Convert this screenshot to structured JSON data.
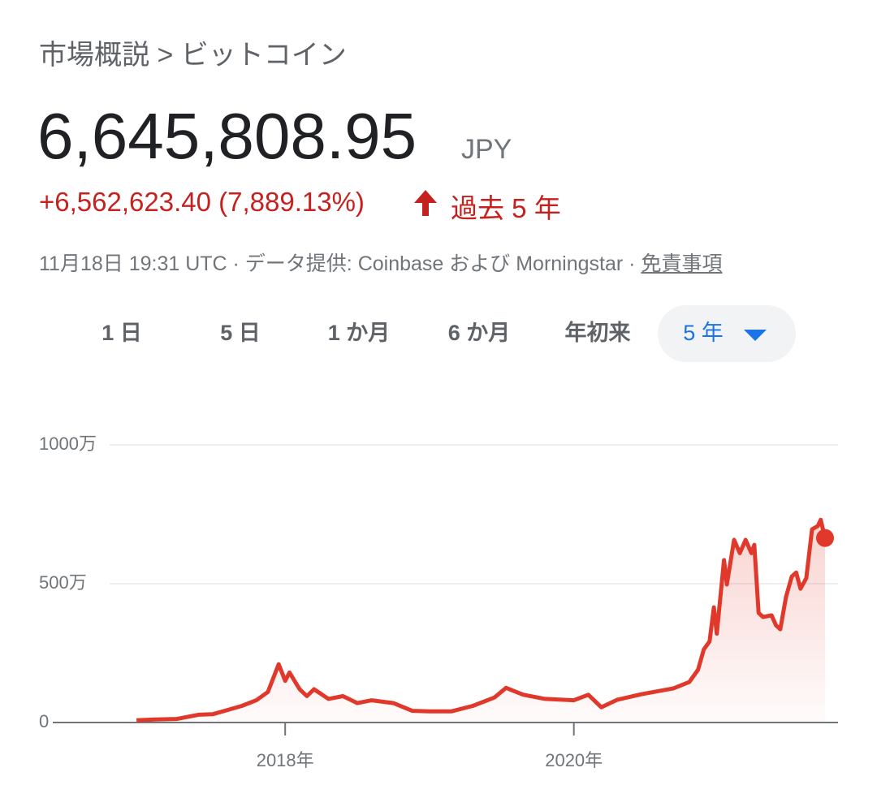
{
  "header": {
    "breadcrumb": "市場概説 > ビットコイン",
    "price": "6,645,808.95",
    "currency": "JPY",
    "change": "+6,562,623.40 (7,889.13%)",
    "period": "過去 5 年",
    "info": "11月18日 19:31 UTC · データ提供: Coinbase および Morningstar · ",
    "disclaimer": "免責事項"
  },
  "tabs": [
    "1 日",
    "5 日",
    "1 か月",
    "6 か月",
    "年初来",
    "5 年"
  ],
  "selected_tab": 5,
  "chart_data": {
    "type": "line",
    "color": "#e0392b",
    "x": [
      2016.97,
      2017.1,
      2017.25,
      2017.4,
      2017.5,
      2017.6,
      2017.7,
      2017.8,
      2017.88,
      2017.955,
      2018.0,
      2018.03,
      2018.1,
      2018.15,
      2018.2,
      2018.3,
      2018.4,
      2018.5,
      2018.6,
      2018.75,
      2018.88,
      2019.0,
      2019.15,
      2019.3,
      2019.45,
      2019.53,
      2019.65,
      2019.8,
      2020.0,
      2020.1,
      2020.19,
      2020.3,
      2020.47,
      2020.69,
      2020.8,
      2020.86,
      2020.9,
      2020.94,
      2020.97,
      2020.99,
      2021.04,
      2021.06,
      2021.11,
      2021.15,
      2021.19,
      2021.23,
      2021.25,
      2021.28,
      2021.31,
      2021.37,
      2021.4,
      2021.43,
      2021.47,
      2021.51,
      2021.54,
      2021.57,
      2021.61,
      2021.65,
      2021.69,
      2021.71,
      2021.74
    ],
    "values": [
      83185,
      110000,
      130000,
      280000,
      300000,
      450000,
      600000,
      800000,
      1100000,
      2100000,
      1500000,
      1800000,
      1200000,
      950000,
      1200000,
      850000,
      950000,
      700000,
      800000,
      700000,
      420000,
      400000,
      400000,
      600000,
      900000,
      1250000,
      1000000,
      850000,
      800000,
      1000000,
      550000,
      820000,
      1020000,
      1230000,
      1460000,
      1900000,
      2630000,
      2920000,
      4150000,
      3200000,
      5850000,
      4970000,
      6580000,
      6100000,
      6580000,
      6100000,
      6400000,
      3950000,
      3800000,
      3860000,
      3500000,
      3360000,
      4530000,
      5260000,
      5400000,
      4820000,
      5200000,
      6960000,
      7080000,
      7300000,
      6645808.95
    ],
    "xlim": [
      2016.39,
      2021.83
    ],
    "xticks": [
      {
        "value": 2018,
        "label": "2018年"
      },
      {
        "value": 2020,
        "label": "2020年"
      }
    ],
    "ylim": [
      0,
      10000000
    ],
    "yticks": [
      0,
      {
        "value": 5000000,
        "label": "500万"
      },
      {
        "value": 10000000,
        "label": "1000万"
      }
    ],
    "grid": true
  }
}
